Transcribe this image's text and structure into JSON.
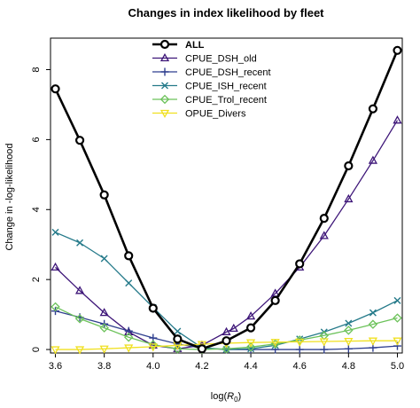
{
  "chart_data": {
    "type": "line",
    "title": "Changes in index likelihood by fleet",
    "xlabel_main": "log(",
    "xlabel_var": "R",
    "xlabel_sub": "0",
    "xlabel_close": ")",
    "ylabel": "Change in -log-likelihood",
    "xlim": [
      3.58,
      5.02
    ],
    "ylim": [
      -0.1,
      8.9
    ],
    "xticks": [
      3.6,
      3.8,
      4.0,
      4.2,
      4.4,
      4.6,
      4.8,
      5.0
    ],
    "xtick_labels": [
      "3.6",
      "3.8",
      "4.0",
      "4.2",
      "4.4",
      "4.6",
      "4.8",
      "5.0"
    ],
    "yticks": [
      0,
      2,
      4,
      6,
      8
    ],
    "ytick_labels": [
      "0",
      "2",
      "4",
      "6",
      "8"
    ],
    "legend_position": "top-center",
    "series": [
      {
        "name": "ALL",
        "color": "#000000",
        "marker": "circle",
        "width": 2.6,
        "x": [
          3.6,
          3.7,
          3.8,
          3.9,
          4.0,
          4.1,
          4.2,
          4.3,
          4.4,
          4.5,
          4.6,
          4.7,
          4.8,
          4.9,
          5.0
        ],
        "y": [
          7.45,
          5.98,
          4.42,
          2.68,
          1.18,
          0.3,
          0.02,
          0.25,
          0.62,
          1.4,
          2.45,
          3.75,
          5.25,
          6.88,
          8.55
        ]
      },
      {
        "name": "CPUE_DSH_old",
        "color": "#3d1578",
        "marker": "triangle",
        "width": 1.3,
        "x": [
          3.6,
          3.7,
          3.8,
          3.9,
          4.0,
          4.1,
          4.2,
          4.3,
          4.33,
          4.4,
          4.5,
          4.6,
          4.7,
          4.8,
          4.9,
          5.0
        ],
        "y": [
          2.35,
          1.68,
          1.05,
          0.5,
          0.12,
          0.02,
          0.12,
          0.5,
          0.6,
          0.95,
          1.6,
          2.35,
          3.25,
          4.3,
          5.4,
          6.55
        ]
      },
      {
        "name": "CPUE_DSH_recent",
        "color": "#2f3f8f",
        "marker": "plus",
        "width": 1.3,
        "x": [
          3.6,
          3.7,
          3.8,
          3.9,
          4.0,
          4.1,
          4.2,
          4.3,
          4.4,
          4.5,
          4.6,
          4.7,
          4.8,
          4.9,
          5.0
        ],
        "y": [
          1.1,
          0.92,
          0.73,
          0.53,
          0.33,
          0.16,
          0.04,
          0.0,
          0.0,
          0.0,
          0.0,
          0.0,
          0.02,
          0.05,
          0.1
        ]
      },
      {
        "name": "CPUE_ISH_recent",
        "color": "#257a8a",
        "marker": "x",
        "width": 1.3,
        "x": [
          3.6,
          3.7,
          3.8,
          3.9,
          4.0,
          4.1,
          4.2,
          4.3,
          4.4,
          4.5,
          4.6,
          4.7,
          4.8,
          4.9,
          5.0
        ],
        "y": [
          3.35,
          3.05,
          2.6,
          1.9,
          1.2,
          0.52,
          0.05,
          0.0,
          0.02,
          0.12,
          0.3,
          0.5,
          0.75,
          1.05,
          1.4
        ]
      },
      {
        "name": "CPUE_Trol_recent",
        "color": "#6cc25a",
        "marker": "diamond",
        "width": 1.3,
        "x": [
          3.6,
          3.7,
          3.8,
          3.9,
          4.0,
          4.1,
          4.2,
          4.3,
          4.4,
          4.5,
          4.6,
          4.7,
          4.8,
          4.9,
          5.0
        ],
        "y": [
          1.22,
          0.88,
          0.62,
          0.35,
          0.14,
          0.02,
          0.0,
          0.02,
          0.07,
          0.16,
          0.27,
          0.4,
          0.55,
          0.72,
          0.9
        ]
      },
      {
        "name": "OPUE_Divers",
        "color": "#f0e020",
        "marker": "triangle-down",
        "width": 1.3,
        "x": [
          3.6,
          3.7,
          3.8,
          3.9,
          4.0,
          4.1,
          4.2,
          4.3,
          4.4,
          4.5,
          4.6,
          4.7,
          4.8,
          4.9,
          5.0
        ],
        "y": [
          0.0,
          0.0,
          0.02,
          0.05,
          0.08,
          0.12,
          0.15,
          0.18,
          0.2,
          0.21,
          0.22,
          0.23,
          0.24,
          0.25,
          0.25
        ]
      }
    ]
  }
}
